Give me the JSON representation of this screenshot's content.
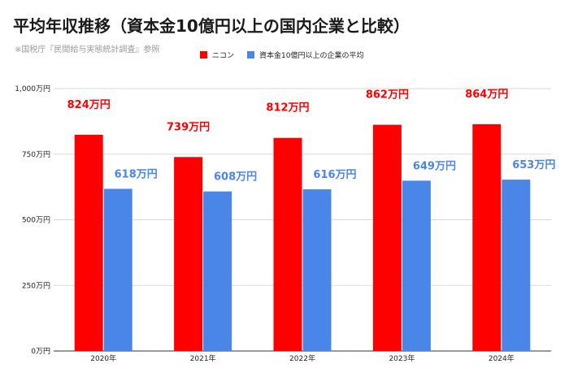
{
  "chart_data": {
    "type": "bar",
    "title": "平均年収推移（資本金10億円以上の国内企業と比較）",
    "subtitle": "※国税庁『民間給与実態統計調査』参照",
    "legend_position": "top-center",
    "categories": [
      "2020年",
      "2021年",
      "2022年",
      "2023年",
      "2024年"
    ],
    "ylim": [
      0,
      1000
    ],
    "yticks": [
      0,
      250,
      500,
      750,
      1000
    ],
    "ytick_labels": [
      "0万円",
      "250万円",
      "500万円",
      "750万円",
      "1,000万円"
    ],
    "grid": true,
    "series": [
      {
        "name": "ニコン",
        "color": "#ff0000",
        "values": [
          824,
          739,
          812,
          862,
          864
        ],
        "labels": [
          "824万円",
          "739万円",
          "812万円",
          "862万円",
          "864万円"
        ]
      },
      {
        "name": "資本金10億円以上の企業の平均",
        "color": "#4a86e8",
        "values": [
          618,
          608,
          616,
          649,
          653
        ],
        "labels": [
          "618万円",
          "608万円",
          "616万円",
          "649万円",
          "653万円"
        ]
      }
    ]
  }
}
